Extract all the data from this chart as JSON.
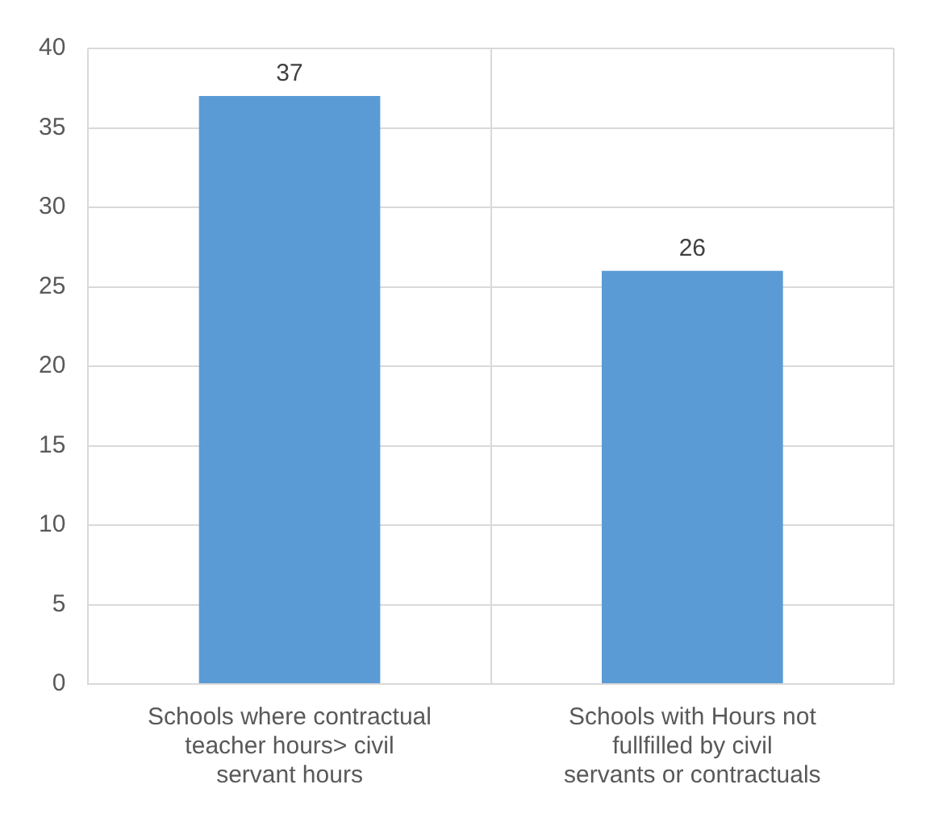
{
  "chart_data": {
    "type": "bar",
    "categories": [
      "Schools where contractual teacher hours> civil servant hours",
      "Schools with Hours not fullfilled by civil servants or contractuals"
    ],
    "values": [
      37,
      26
    ],
    "color": "#5b9bd5",
    "ylim": [
      0,
      40
    ],
    "yticks": [
      0,
      5,
      10,
      15,
      20,
      25,
      30,
      35,
      40
    ],
    "grid": true,
    "data_labels": true,
    "legend": false
  }
}
